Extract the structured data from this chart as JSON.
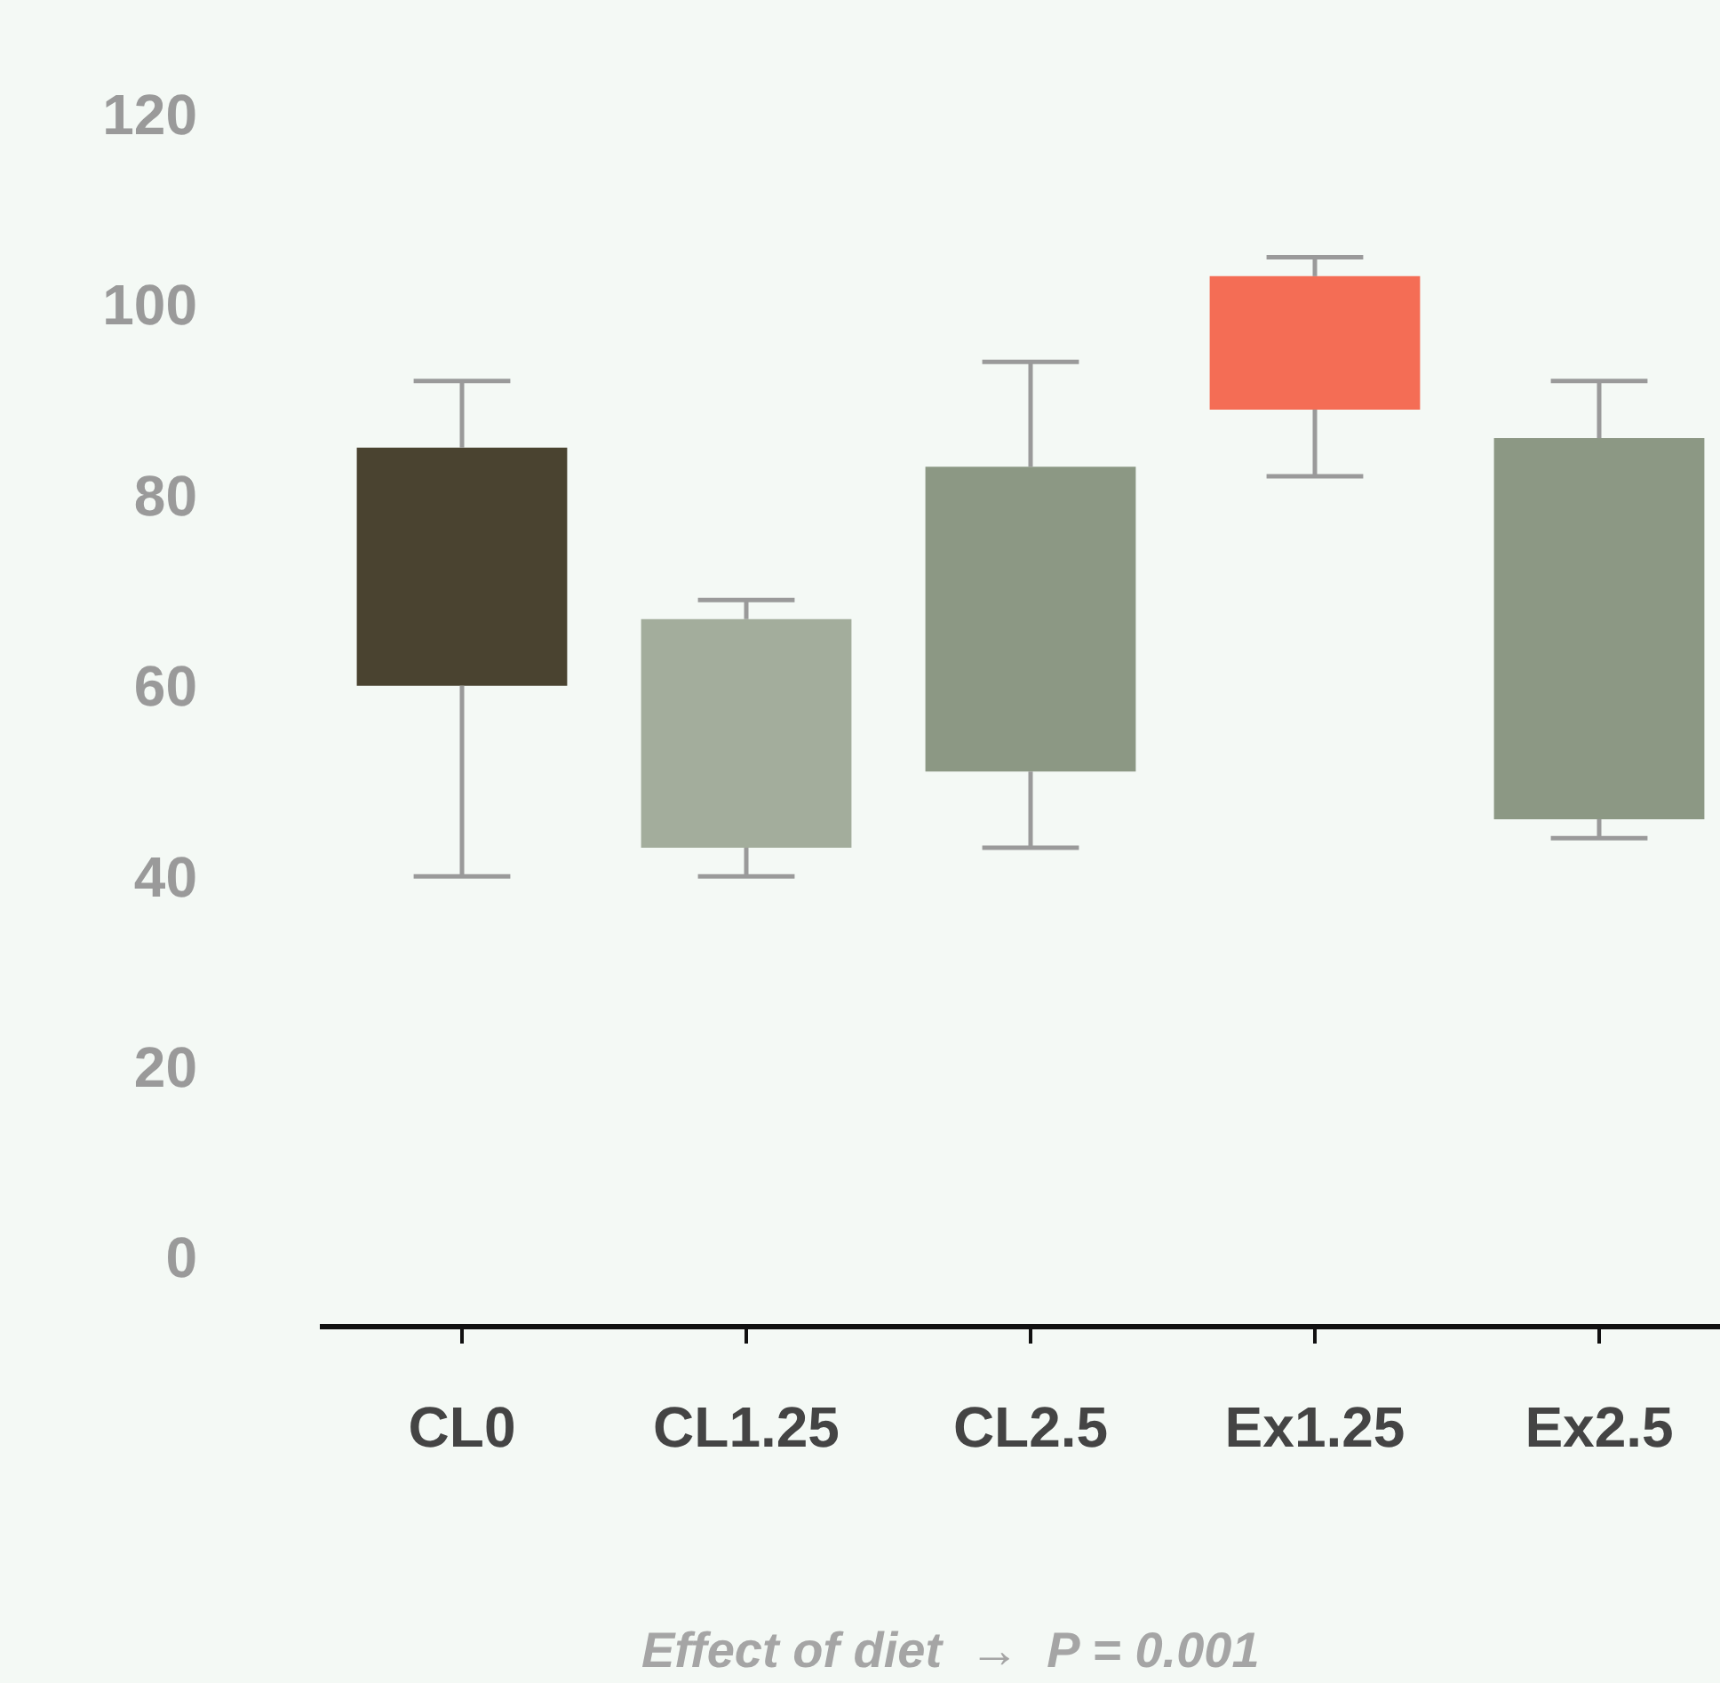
{
  "chart_data": {
    "type": "box",
    "categories": [
      "CL0",
      "CL1.25",
      "CL2.5",
      "Ex1.25",
      "Ex2.5"
    ],
    "colors": [
      "#4a4330",
      "#a3ad9c",
      "#8c9884",
      "#f46d55",
      "#8c9884"
    ],
    "boxes": [
      {
        "low": 40,
        "q1": 60,
        "q3": 85,
        "high": 92
      },
      {
        "low": 40,
        "q1": 43,
        "q3": 67,
        "high": 69
      },
      {
        "low": 43,
        "q1": 51,
        "q3": 83,
        "high": 94
      },
      {
        "low": 82,
        "q1": 89,
        "q3": 103,
        "high": 105
      },
      {
        "low": 44,
        "q1": 46,
        "q3": 86,
        "high": 92
      }
    ],
    "ylim": [
      -7,
      132
    ],
    "yticks": [
      0,
      20,
      40,
      60,
      80,
      100,
      120
    ],
    "annotations": [
      "Effect of diet  →  P = 0.001"
    ]
  }
}
